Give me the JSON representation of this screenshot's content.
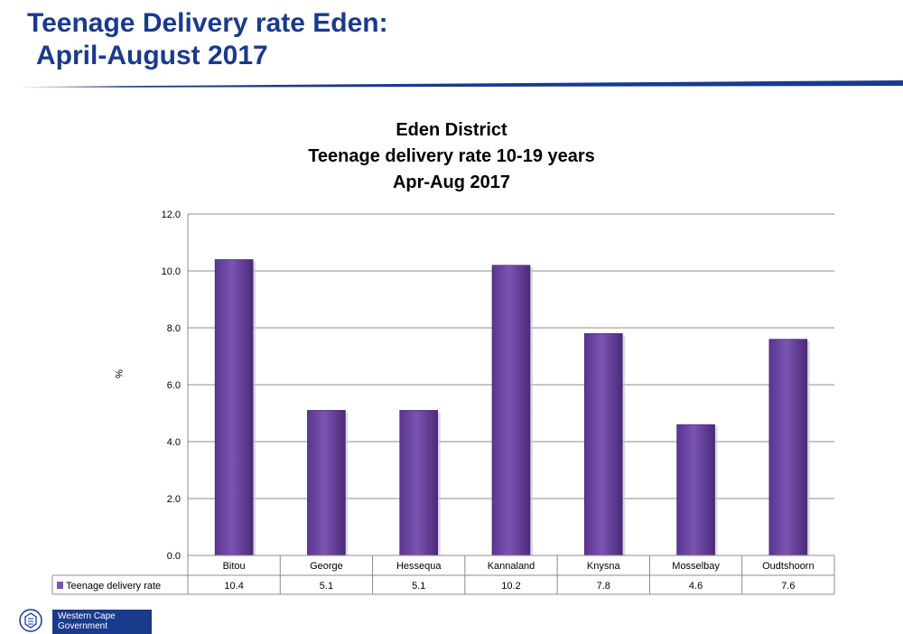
{
  "slide": {
    "title_line1": "Teenage Delivery rate Eden:",
    "title_line2": "April-August 2017"
  },
  "footer": {
    "logo_line1": "Western Cape",
    "logo_line2": "Government"
  },
  "colors": {
    "title": "#1a3a8c",
    "accent_rule": "#1a3a8c",
    "bar": "#7a54b2"
  },
  "chart_data": {
    "type": "bar",
    "title_lines": [
      "Eden District",
      "Teenage delivery rate 10-19 years",
      "Apr-Aug 2017"
    ],
    "ylabel": "%",
    "ylim": [
      0,
      12
    ],
    "yticks": [
      "0.0",
      "2.0",
      "4.0",
      "6.0",
      "8.0",
      "10.0",
      "12.0"
    ],
    "grid": true,
    "categories": [
      "Bitou",
      "George",
      "Hessequa",
      "Kannaland",
      "Knysna",
      "Mosselbay",
      "Oudtshoorn"
    ],
    "series": [
      {
        "name": "Teenage delivery rate",
        "values": [
          10.4,
          5.1,
          5.1,
          10.2,
          7.8,
          4.6,
          7.6
        ],
        "value_labels": [
          "10.4",
          "5.1",
          "5.1",
          "10.2",
          "7.8",
          "4.6",
          "7.6"
        ]
      }
    ],
    "data_table": true
  }
}
